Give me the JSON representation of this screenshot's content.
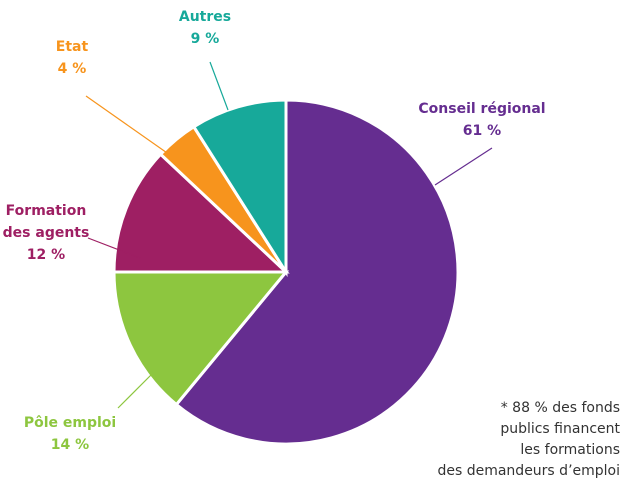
{
  "chart_data": {
    "type": "pie",
    "categories": [
      "Conseil régional",
      "Pôle emploi",
      "Formation des agents",
      "Etat",
      "Autres"
    ],
    "values": [
      61,
      14,
      12,
      4,
      9
    ],
    "value_labels": [
      "61 %",
      "14 %",
      "12 %",
      "4 %",
      "9 %"
    ],
    "colors": [
      "#652d90",
      "#8dc63f",
      "#9e1f63",
      "#f7941d",
      "#17a99a"
    ],
    "annotation": [
      "* 88 % des fonds",
      "publics financent",
      "les formations",
      "des demandeurs d’emploi"
    ]
  }
}
